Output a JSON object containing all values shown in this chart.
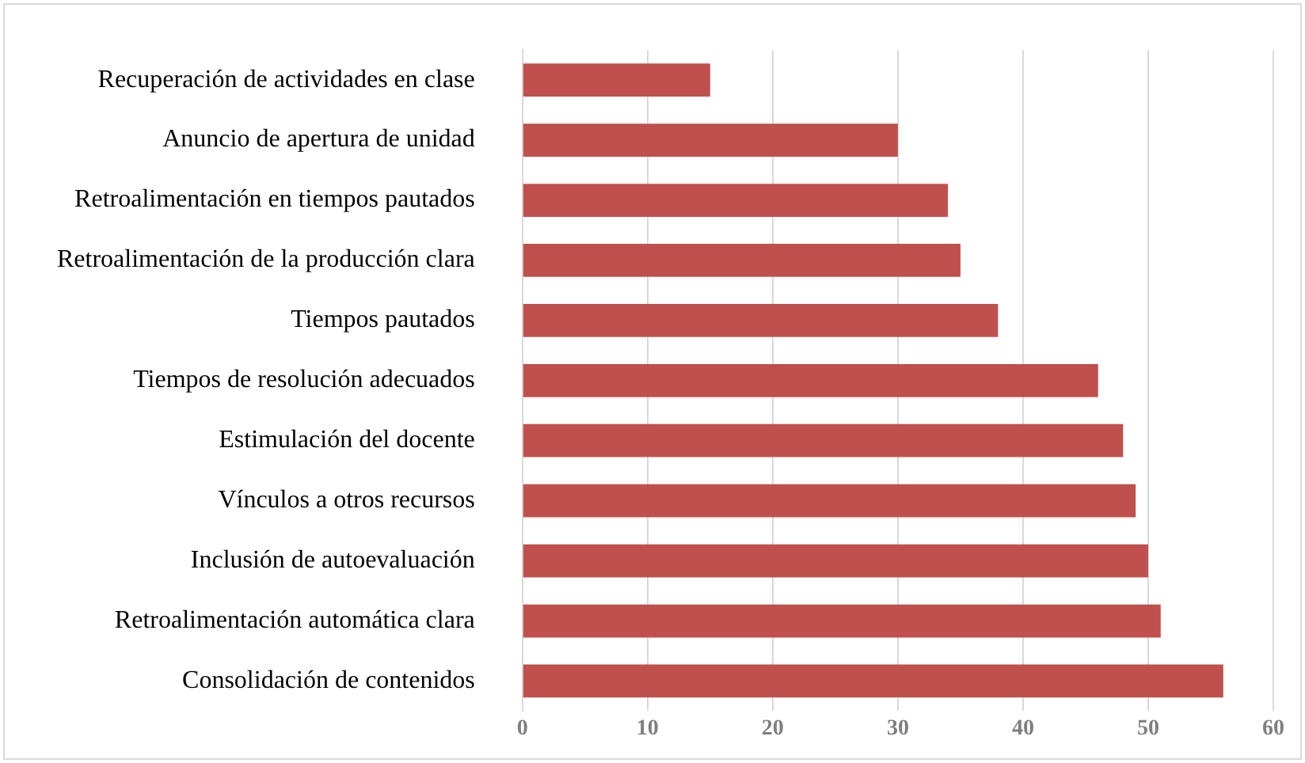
{
  "chart_data": {
    "type": "bar",
    "orientation": "horizontal",
    "categories": [
      "Recuperación de actividades en clase",
      "Anuncio de apertura de unidad",
      "Retroalimentación en tiempos pautados",
      "Retroalimentación de la producción clara",
      "Tiempos pautados",
      "Tiempos de resolución adecuados",
      "Estimulación del docente",
      "Vínculos a otros recursos",
      "Inclusión de autoevaluación",
      "Retroalimentación automática clara",
      "Consolidación de contenidos"
    ],
    "values": [
      15,
      30,
      34,
      35,
      38,
      46,
      48,
      49,
      50,
      51,
      56
    ],
    "color": "#c0504d",
    "xlim": [
      0,
      60
    ],
    "xticks": [
      0,
      10,
      20,
      30,
      40,
      50,
      60
    ],
    "grid": "x",
    "legend": false
  }
}
